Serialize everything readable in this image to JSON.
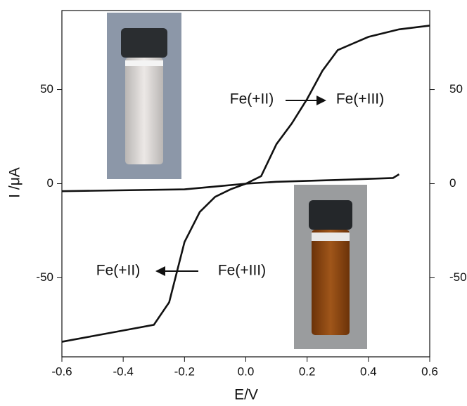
{
  "chart_data": {
    "type": "line",
    "x_label": "E/V",
    "y_label": "I /μA",
    "xlim": [
      -0.6,
      0.6
    ],
    "xticks": [
      -0.6,
      -0.4,
      -0.2,
      0.0,
      0.2,
      0.4,
      0.6
    ],
    "ylim": [
      -92,
      92
    ],
    "yticks": [
      -50,
      0,
      50
    ],
    "y2lim": [
      -92,
      92
    ],
    "y2ticks": [
      -50,
      0,
      50
    ],
    "series": [
      {
        "color": "#111111",
        "x": [
          -0.6,
          -0.5,
          -0.4,
          -0.3,
          -0.25,
          -0.2,
          -0.15,
          -0.1,
          -0.05,
          0,
          0.05,
          0.1,
          0.15,
          0.2,
          0.25,
          0.3,
          0.4,
          0.5,
          0.6
        ],
        "values": [
          -84,
          -81,
          -78,
          -75,
          -63,
          -31,
          -15,
          -7,
          -3,
          0,
          4,
          21,
          32,
          45,
          60,
          71,
          78,
          82,
          84
        ]
      },
      {
        "color": "#111111",
        "x": [
          -0.6,
          -0.4,
          -0.2,
          -0.1,
          0,
          0.1,
          0.3,
          0.48,
          0.5
        ],
        "values": [
          -4,
          -3.5,
          -3,
          -1.5,
          0,
          1,
          2,
          3,
          5
        ]
      }
    ],
    "annotations": [
      "Fe(+II)",
      "Fe(+III)",
      "Fe(+II)",
      "Fe(+III)"
    ]
  }
}
